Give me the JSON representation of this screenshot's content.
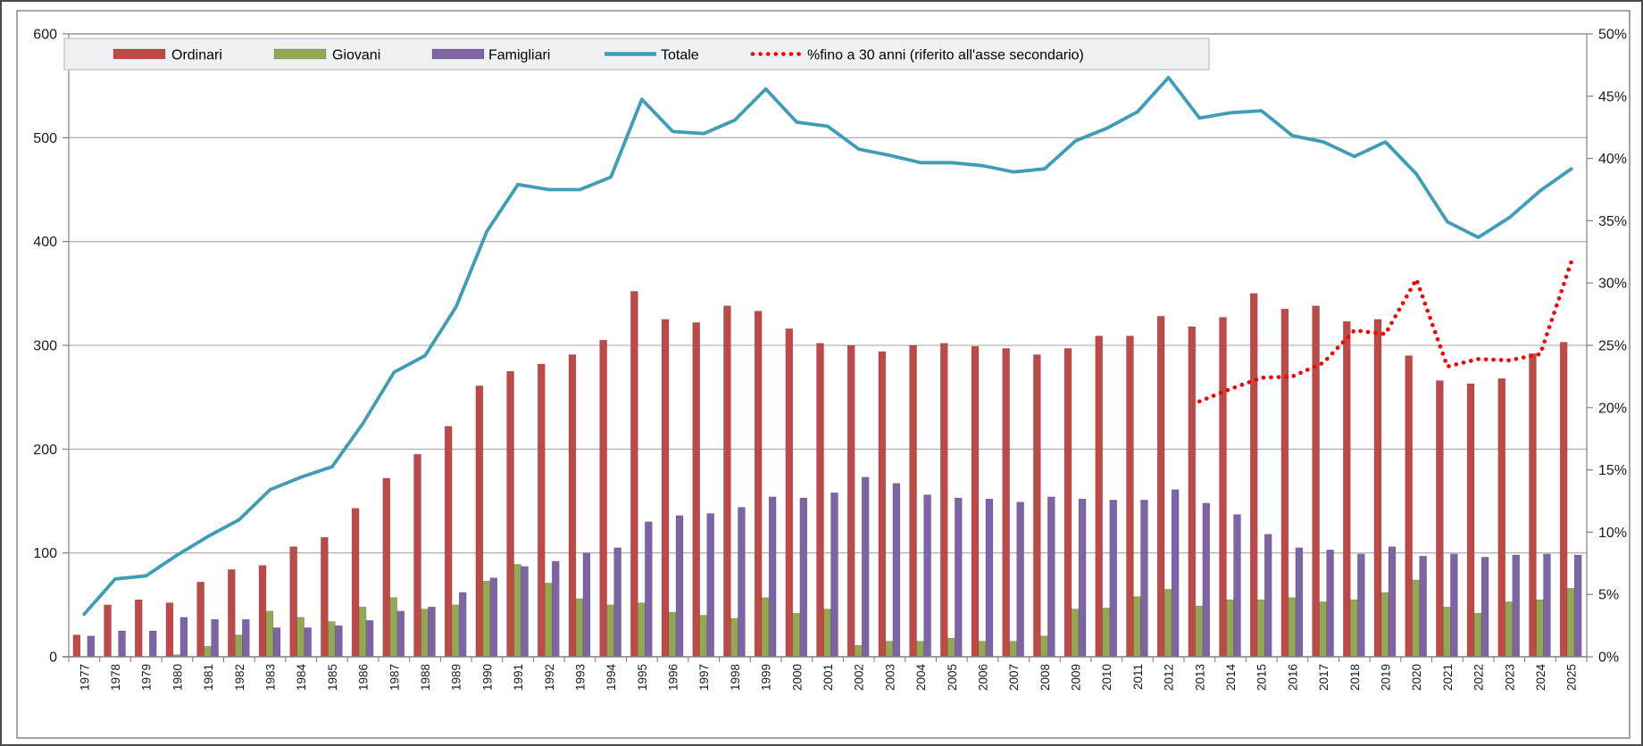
{
  "chart": {
    "frame_color": "#808080",
    "gridline_color": "#a6a6a6",
    "plot_bg": "#ffffff"
  },
  "legend": {
    "bg": "#eff0f1",
    "border": "#b5bfc9",
    "items": [
      {
        "label": "Ordinari",
        "swatch": "bar",
        "color": "#be4a47"
      },
      {
        "label": "Giovani",
        "swatch": "bar",
        "color": "#93a853"
      },
      {
        "label": "Famigliari",
        "swatch": "bar",
        "color": "#7c64a5"
      },
      {
        "label": "Totale",
        "swatch": "line",
        "color": "#3f9db8"
      },
      {
        "label": "%fino a 30 anni (riferito all'asse secondario)",
        "swatch": "dots",
        "color": "#ff0000"
      }
    ]
  },
  "axes": {
    "left_ticks": [
      "0",
      "100",
      "200",
      "300",
      "400",
      "500",
      "600"
    ],
    "right_ticks": [
      "0%",
      "5%",
      "10%",
      "15%",
      "20%",
      "25%",
      "30%",
      "35%",
      "40%",
      "45%",
      "50%"
    ],
    "left_range": [
      0,
      600
    ],
    "right_range": [
      0,
      50
    ]
  },
  "chart_data": {
    "type": "combo",
    "categories": [
      "1977",
      "1978",
      "1979",
      "1980",
      "1981",
      "1982",
      "1983",
      "1984",
      "1985",
      "1986",
      "1987",
      "1988",
      "1989",
      "1990",
      "1991",
      "1992",
      "1993",
      "1994",
      "1995",
      "1996",
      "1997",
      "1998",
      "1999",
      "2000",
      "2001",
      "2002",
      "2003",
      "2004",
      "2005",
      "2006",
      "2007",
      "2008",
      "2009",
      "2010",
      "2011",
      "2012",
      "2013",
      "2014",
      "2015",
      "2016",
      "2017",
      "2018",
      "2019",
      "2020",
      "2021",
      "2022",
      "2023",
      "2024",
      "2025"
    ],
    "ylabel_left": "",
    "ylabel_right": "",
    "ylim_left": [
      0,
      600
    ],
    "ylim_right_percent": [
      0,
      50
    ],
    "grid": true,
    "legend_position": "top",
    "series": [
      {
        "name": "Ordinari",
        "type": "bar",
        "axis": "primary",
        "color": "#be4a47",
        "values": [
          21,
          50,
          55,
          52,
          72,
          84,
          88,
          106,
          115,
          143,
          172,
          195,
          222,
          261,
          275,
          282,
          291,
          305,
          352,
          325,
          322,
          338,
          333,
          316,
          302,
          300,
          294,
          300,
          302,
          299,
          297,
          291,
          297,
          309,
          309,
          328,
          318,
          327,
          350,
          335,
          338,
          323,
          325,
          290,
          266,
          263,
          268,
          292,
          303
        ]
      },
      {
        "name": "Giovani",
        "type": "bar",
        "axis": "primary",
        "color": "#93a853",
        "values": [
          0,
          0,
          0,
          2,
          10,
          21,
          44,
          38,
          34,
          48,
          57,
          46,
          50,
          73,
          89,
          71,
          56,
          50,
          52,
          43,
          40,
          37,
          57,
          42,
          46,
          11,
          15,
          15,
          18,
          15,
          15,
          20,
          46,
          47,
          58,
          65,
          49,
          55,
          55,
          57,
          53,
          55,
          62,
          74,
          48,
          42,
          53,
          55,
          66
        ]
      },
      {
        "name": "Famigliari",
        "type": "bar",
        "axis": "primary",
        "color": "#7c64a5",
        "values": [
          20,
          25,
          25,
          38,
          36,
          36,
          28,
          28,
          30,
          35,
          44,
          48,
          62,
          76,
          87,
          92,
          100,
          105,
          130,
          136,
          138,
          144,
          154,
          153,
          158,
          173,
          167,
          156,
          153,
          152,
          149,
          154,
          152,
          151,
          151,
          161,
          148,
          137,
          118,
          105,
          103,
          99,
          106,
          97,
          99,
          96,
          98,
          99,
          98
        ]
      },
      {
        "name": "Totale",
        "type": "line",
        "axis": "primary",
        "color": "#3f9db8",
        "values": [
          41,
          75,
          78,
          98,
          116,
          132,
          161,
          173,
          183,
          225,
          274,
          290,
          337,
          410,
          455,
          450,
          450,
          462,
          537,
          506,
          504,
          517,
          547,
          515,
          511,
          489,
          483,
          476,
          476,
          473,
          467,
          470,
          497,
          509,
          525,
          558,
          519,
          524,
          526,
          502,
          496,
          482,
          496,
          465,
          419,
          404,
          423,
          449,
          470
        ]
      },
      {
        "name": "%fino a 30 anni (riferito all'asse secondario)",
        "type": "dotted-line",
        "axis": "secondary",
        "color": "#ff0000",
        "values": [
          null,
          null,
          null,
          null,
          null,
          null,
          null,
          null,
          null,
          null,
          null,
          null,
          null,
          null,
          null,
          null,
          null,
          null,
          null,
          null,
          null,
          null,
          null,
          null,
          null,
          null,
          null,
          null,
          null,
          null,
          null,
          null,
          null,
          null,
          null,
          null,
          20.5,
          21.5,
          22.4,
          22.5,
          23.6,
          26.2,
          25.9,
          30.3,
          23.3,
          23.9,
          23.8,
          24.3,
          31.7
        ]
      }
    ]
  }
}
